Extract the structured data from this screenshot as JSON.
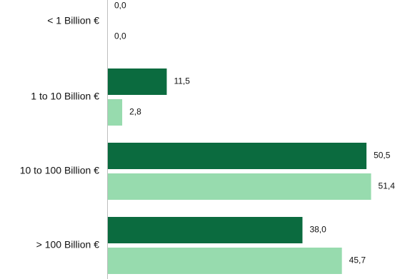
{
  "chart_data": {
    "type": "bar",
    "orientation": "horizontal",
    "categories": [
      "< 1 Billion €",
      "1 to 10 Billion €",
      "10 to 100 Billion €",
      "> 100 Billion €"
    ],
    "series": [
      {
        "values": [
          0.0,
          11.5,
          50.5,
          38.0
        ],
        "labels": [
          "0,0",
          "11,5",
          "50,5",
          "38,0"
        ],
        "color": "#0b6b3f"
      },
      {
        "values": [
          0.0,
          2.8,
          51.4,
          45.7
        ],
        "labels": [
          "0,0",
          "2,8",
          "51,4",
          "45,7"
        ],
        "color": "#97dbae"
      }
    ],
    "xlim": [
      0,
      53
    ],
    "grid": false,
    "legend": "none",
    "axis_line_color": "#bfbfbf"
  }
}
